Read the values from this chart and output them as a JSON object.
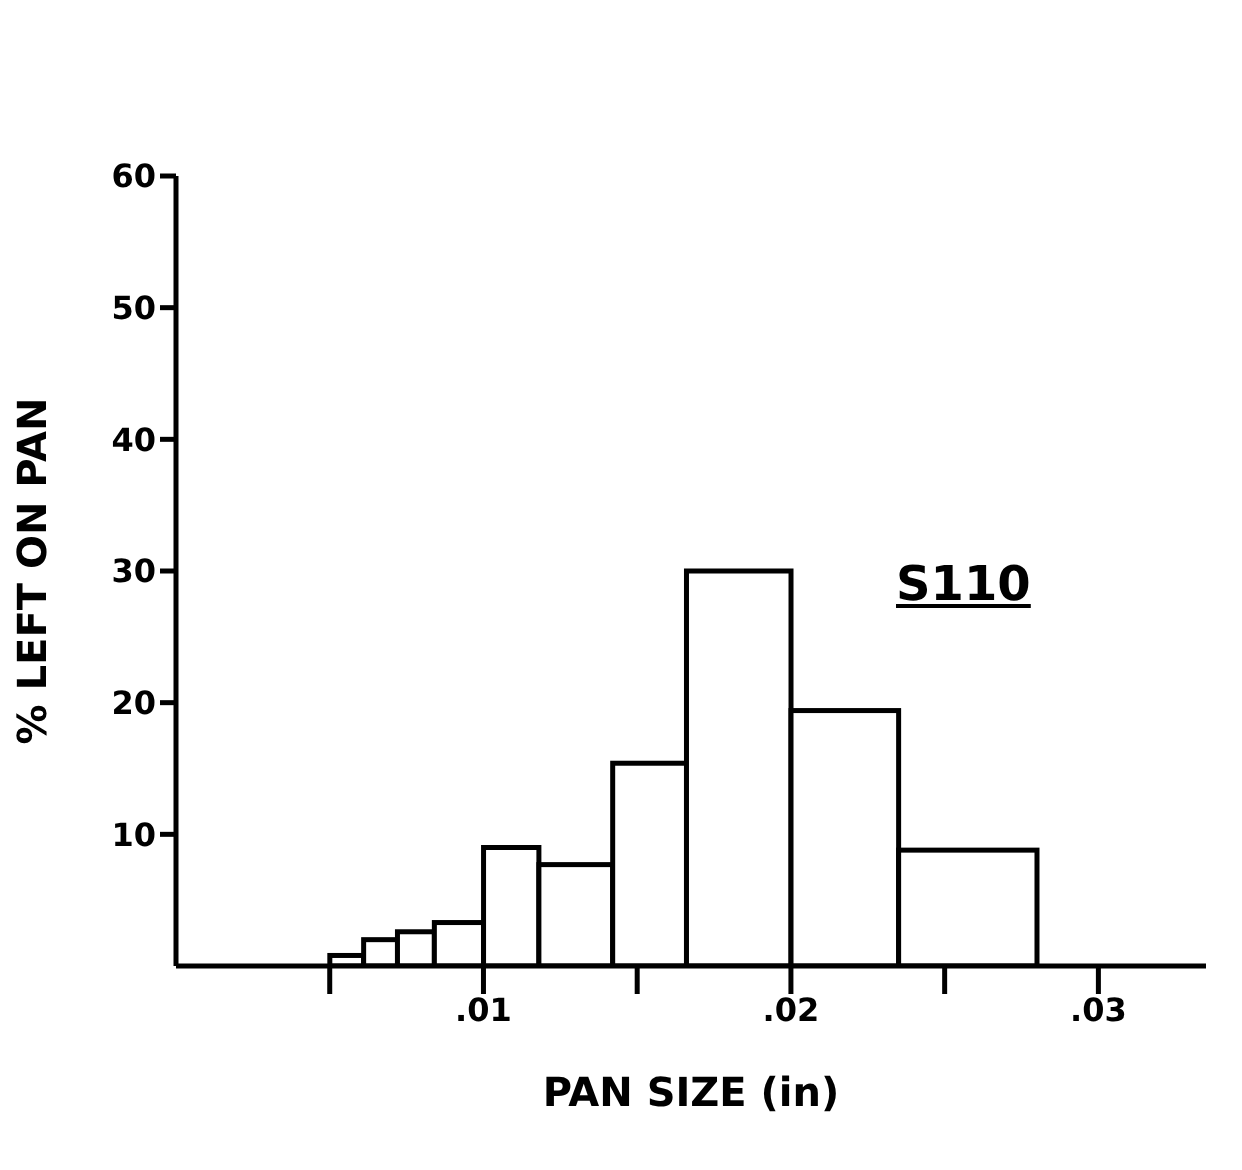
{
  "chart_data": {
    "type": "histogram",
    "xlabel": "PAN  SIZE  (in)",
    "ylabel": "% LEFT ON PAN",
    "bins": [
      0.005,
      0.0061,
      0.0072,
      0.0084,
      0.01,
      0.0118,
      0.0142,
      0.0166,
      0.02,
      0.0235,
      0.028
    ],
    "values": [
      0.8,
      2,
      2.6,
      3.3,
      9,
      7.7,
      15.4,
      30,
      19.4,
      8.8
    ],
    "color": "#ffffff",
    "xlim": [
      0,
      0.0335
    ],
    "xticks": [
      {
        "value": 0.005,
        "label": null
      },
      {
        "value": 0.01,
        "label": ".01"
      },
      {
        "value": 0.015,
        "label": null
      },
      {
        "value": 0.02,
        "label": ".02"
      },
      {
        "value": 0.025,
        "label": null
      },
      {
        "value": 0.03,
        "label": ".03"
      }
    ],
    "ylim": [
      0,
      60
    ],
    "yticks": [
      10,
      20,
      30,
      40,
      50,
      60
    ],
    "annotations": [
      "S110"
    ]
  }
}
